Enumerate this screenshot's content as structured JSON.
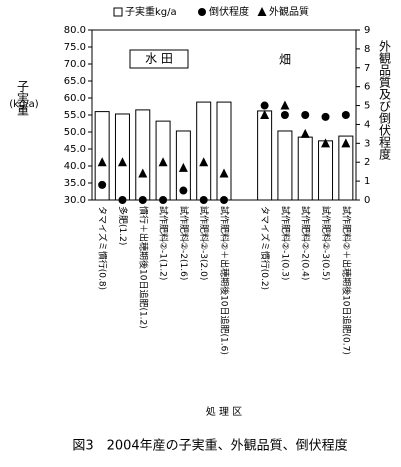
{
  "chart_data": {
    "type": "bar",
    "y_label": "子実重",
    "y_unit": "(kg/a)",
    "y2_label": "外観品質及び倒伏程度",
    "x_label": "処 理 区",
    "caption": "図3　2004年産の子実重、外観品質、倒伏程度",
    "annotations": [
      "水 田",
      "畑"
    ],
    "categories": [
      "タマイズミ慣行(0.8)",
      "多肥(1.2)",
      "慣行＋出穂期後10日追肥(1.2)",
      "試作肥料②-1(1.2)",
      "試作肥料②-2(1.6)",
      "試作肥料②-3(2.0)",
      "試作肥料②＋出穂期後10日追肥(1.6)",
      null,
      "タマイズミ慣行(0.2)",
      "試作肥料②-1(0.3)",
      "試作肥料②-2(0.4)",
      "試作肥料②-3(0.5)",
      "試作肥料②＋出穂期後10日追肥(0.7)"
    ],
    "series": [
      {
        "name": "子実重kg/a",
        "color": "#ffffff",
        "values": [
          56,
          55.3,
          56.5,
          53.2,
          50.3,
          58.8,
          58.8,
          null,
          56.2,
          50.3,
          48.5,
          47.4,
          48.8
        ]
      },
      {
        "name": "倒伏程度",
        "color": "#000000",
        "axis": "y2",
        "marker": "circle",
        "values": [
          0.8,
          0,
          0,
          0,
          0.5,
          0,
          0,
          null,
          5,
          4.5,
          4.5,
          4.4,
          4.5
        ]
      },
      {
        "name": "外観品質",
        "color": "#000000",
        "axis": "y2",
        "marker": "triangle",
        "values": [
          2,
          2,
          1.4,
          2,
          1.7,
          2,
          1.4,
          null,
          4.5,
          5,
          3.5,
          3,
          3
        ]
      }
    ],
    "ylim": [
      30,
      80
    ],
    "yticks": [
      {
        "value": 30,
        "label": "30.0"
      },
      {
        "value": 35,
        "label": "35.0"
      },
      {
        "value": 40,
        "label": "40.0"
      },
      {
        "value": 45,
        "label": "45.0"
      },
      {
        "value": 50,
        "label": "50.0"
      },
      {
        "value": 55,
        "label": "55.0"
      },
      {
        "value": 60,
        "label": "60.0"
      },
      {
        "value": 65,
        "label": "65.0"
      },
      {
        "value": 70,
        "label": "70.0"
      },
      {
        "value": 75,
        "label": "75.0"
      },
      {
        "value": 80,
        "label": "80.0"
      }
    ],
    "y2lim": [
      0,
      9
    ],
    "y2ticks": [
      0,
      1,
      2,
      3,
      4,
      5,
      6,
      7,
      8,
      9
    ]
  }
}
